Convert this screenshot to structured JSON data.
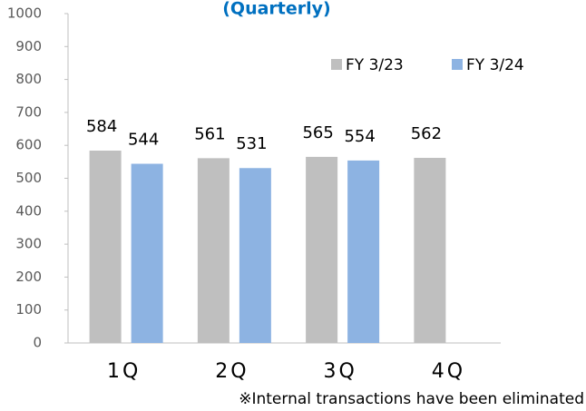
{
  "chart_data": {
    "type": "bar",
    "title": "(Quarterly)",
    "categories": [
      "1Q",
      "2Q",
      "3Q",
      "4Q"
    ],
    "series": [
      {
        "name": "FY 3/23",
        "color": "#bfbfbf",
        "values": [
          584,
          561,
          565,
          562
        ]
      },
      {
        "name": "FY 3/24",
        "color": "#8db3e2",
        "values": [
          544,
          531,
          554,
          null
        ]
      }
    ],
    "ylim": [
      0,
      1000
    ],
    "yticks": [
      0,
      100,
      200,
      300,
      400,
      500,
      600,
      700,
      800,
      900,
      1000
    ],
    "legend": "upper right",
    "note": "※Internal transactions have been eliminated"
  }
}
